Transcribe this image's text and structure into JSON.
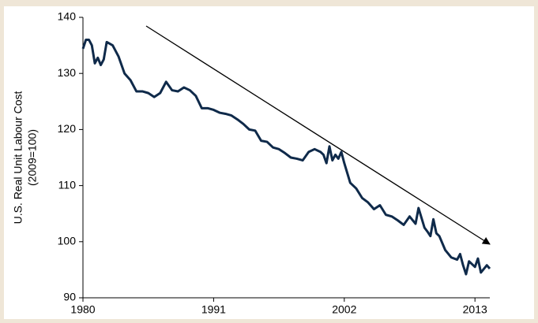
{
  "chart_data": {
    "type": "line",
    "y_label": [
      "U.S. Real Unit Labour Cost",
      "(2009=100)"
    ],
    "x": [
      1980,
      1980.25,
      1980.5,
      1980.75,
      1981,
      1981.25,
      1981.5,
      1981.75,
      1982,
      1982.5,
      1983,
      1983.5,
      1984,
      1984.5,
      1985,
      1985.5,
      1986,
      1986.5,
      1987,
      1987.5,
      1988,
      1988.5,
      1989,
      1989.5,
      1990,
      1990.5,
      1991,
      1991.5,
      1992,
      1992.5,
      1993,
      1993.5,
      1994,
      1994.5,
      1995,
      1995.5,
      1996,
      1996.5,
      1997,
      1997.5,
      1998,
      1998.5,
      1999,
      1999.5,
      2000,
      2000.25,
      2000.5,
      2000.75,
      2001,
      2001.25,
      2001.5,
      2001.75,
      2002,
      2002.5,
      2003,
      2003.5,
      2004,
      2004.5,
      2005,
      2005.5,
      2006,
      2006.5,
      2007,
      2007.5,
      2008,
      2008.25,
      2008.75,
      2009,
      2009.25,
      2009.5,
      2009.75,
      2010,
      2010.5,
      2011,
      2011.5,
      2011.75,
      2012,
      2012.25,
      2012.5,
      2013,
      2013.25,
      2013.5,
      2014,
      2014.25
    ],
    "series": [
      {
        "name": "U.S. Real Unit Labour Cost",
        "color": "#0f2a4a",
        "values": [
          134.4,
          136,
          136,
          135,
          131.8,
          132.8,
          131.5,
          132.5,
          135.6,
          135,
          133,
          130,
          128.8,
          126.8,
          126.8,
          126.5,
          125.8,
          126.5,
          128.5,
          127,
          126.8,
          127.5,
          127,
          126,
          123.8,
          123.8,
          123.5,
          123,
          122.8,
          122.5,
          121.8,
          121,
          120,
          119.8,
          118,
          117.8,
          116.8,
          116.5,
          115.8,
          115,
          114.8,
          114.5,
          116,
          116.5,
          116,
          115.5,
          114,
          117,
          114.5,
          115.5,
          114.8,
          116,
          114,
          110.5,
          109.5,
          107.8,
          107,
          105.8,
          106.5,
          104.8,
          104.5,
          103.8,
          103,
          104.5,
          103.2,
          106,
          102.5,
          101.8,
          101,
          104,
          101.5,
          101,
          98.5,
          97.2,
          96.8,
          97.8,
          95.8,
          94.2,
          96.5,
          95.5,
          97,
          94.5,
          95.8,
          95.2
        ]
      }
    ],
    "xlim": [
      1980,
      2014.25
    ],
    "xticks": [
      1980,
      1991,
      2002,
      2013
    ],
    "ylim": [
      90,
      140
    ],
    "yticks": [
      90,
      100,
      110,
      120,
      130,
      140
    ]
  }
}
